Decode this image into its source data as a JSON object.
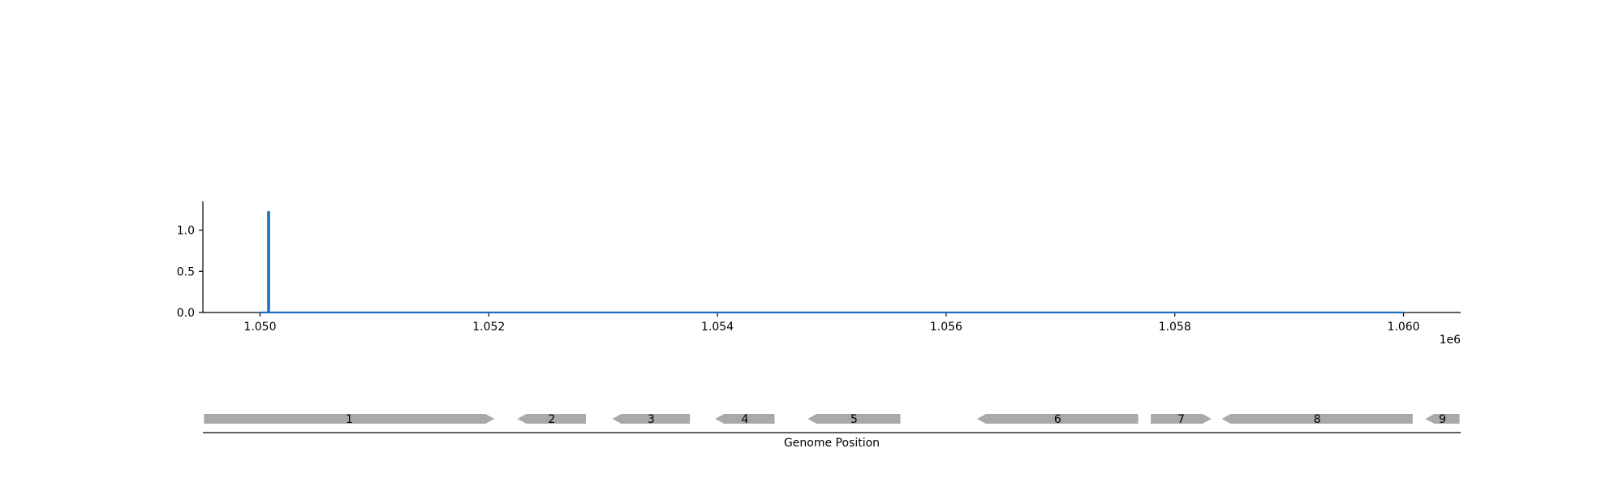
{
  "chart_data": [
    {
      "type": "line",
      "title": "",
      "xlabel": "",
      "ylabel": "",
      "x_offset_label": "1e6",
      "xlim": [
        1049500,
        1060500
      ],
      "ylim": [
        0,
        1.35
      ],
      "x_ticks": [
        1050000,
        1052000,
        1054000,
        1056000,
        1058000,
        1060000
      ],
      "x_tick_labels": [
        "1.050",
        "1.052",
        "1.054",
        "1.056",
        "1.058",
        "1.060"
      ],
      "y_ticks": [
        0.0,
        0.5,
        1.0
      ],
      "y_tick_labels": [
        "0.0",
        "0.5",
        "1.0"
      ],
      "grid": false,
      "series": [
        {
          "color": "#1f6fbf",
          "x": [
            1050000,
            1050070,
            1050070,
            1050080,
            1050080,
            1060000
          ],
          "y": [
            0,
            0,
            1.22,
            1.22,
            0,
            0
          ]
        }
      ]
    },
    {
      "type": "gene_track",
      "xlabel": "Genome Position",
      "xlim": [
        1049500,
        1060500
      ],
      "feature_color": "#a9a9a9",
      "features": [
        {
          "label": "1",
          "start": 1049510,
          "end": 1052050,
          "strand": "+"
        },
        {
          "label": "2",
          "start": 1052250,
          "end": 1052850,
          "strand": "-"
        },
        {
          "label": "3",
          "start": 1053080,
          "end": 1053760,
          "strand": "-"
        },
        {
          "label": "4",
          "start": 1053980,
          "end": 1054500,
          "strand": "-"
        },
        {
          "label": "5",
          "start": 1054790,
          "end": 1055600,
          "strand": "-"
        },
        {
          "label": "6",
          "start": 1056270,
          "end": 1057680,
          "strand": "-"
        },
        {
          "label": "7",
          "start": 1057790,
          "end": 1058320,
          "strand": "+"
        },
        {
          "label": "8",
          "start": 1058410,
          "end": 1060080,
          "strand": "-"
        },
        {
          "label": "9",
          "start": 1060190,
          "end": 1060490,
          "strand": "-"
        }
      ]
    }
  ]
}
